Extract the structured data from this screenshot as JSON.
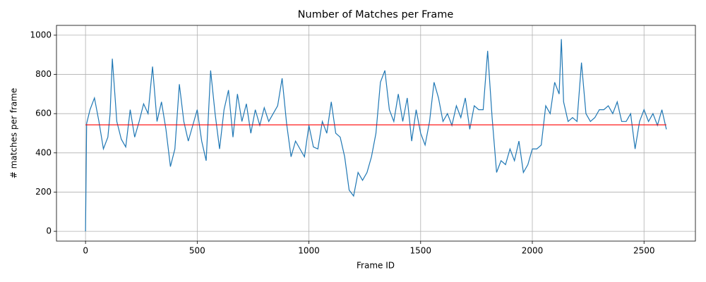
{
  "chart_data": {
    "type": "line",
    "title": "Number of Matches per Frame",
    "x_label": "Frame ID",
    "y_label": "# matches per frame",
    "x": [
      0,
      5,
      20,
      40,
      60,
      80,
      100,
      110,
      120,
      140,
      160,
      180,
      200,
      220,
      240,
      260,
      280,
      300,
      320,
      340,
      360,
      380,
      400,
      420,
      440,
      460,
      480,
      500,
      520,
      540,
      560,
      580,
      600,
      620,
      640,
      660,
      680,
      700,
      720,
      740,
      760,
      780,
      800,
      820,
      840,
      860,
      880,
      900,
      920,
      940,
      960,
      980,
      1000,
      1020,
      1040,
      1060,
      1080,
      1100,
      1120,
      1140,
      1160,
      1180,
      1200,
      1220,
      1240,
      1260,
      1280,
      1300,
      1320,
      1340,
      1360,
      1380,
      1400,
      1420,
      1440,
      1460,
      1480,
      1500,
      1520,
      1540,
      1560,
      1580,
      1600,
      1620,
      1640,
      1660,
      1680,
      1700,
      1720,
      1740,
      1760,
      1780,
      1800,
      1820,
      1840,
      1860,
      1880,
      1900,
      1920,
      1940,
      1960,
      1980,
      2000,
      2020,
      2040,
      2060,
      2080,
      2100,
      2120,
      2130,
      2140,
      2160,
      2180,
      2200,
      2220,
      2240,
      2260,
      2280,
      2300,
      2320,
      2340,
      2360,
      2380,
      2400,
      2420,
      2440,
      2460,
      2480,
      2500,
      2520,
      2540,
      2560,
      2580,
      2600
    ],
    "series": [
      {
        "color": "#1f77b4",
        "values": [
          0,
          550,
          620,
          680,
          560,
          420,
          480,
          600,
          880,
          560,
          470,
          430,
          620,
          480,
          560,
          650,
          600,
          840,
          560,
          660,
          520,
          330,
          420,
          750,
          560,
          460,
          540,
          620,
          460,
          360,
          820,
          600,
          420,
          620,
          720,
          480,
          700,
          560,
          650,
          500,
          620,
          540,
          630,
          560,
          600,
          640,
          780,
          550,
          380,
          460,
          420,
          380,
          540,
          430,
          420,
          560,
          500,
          660,
          500,
          480,
          380,
          210,
          180,
          300,
          260,
          300,
          380,
          500,
          760,
          820,
          620,
          560,
          700,
          560,
          680,
          460,
          620,
          500,
          440,
          560,
          760,
          680,
          560,
          600,
          540,
          640,
          580,
          680,
          520,
          640,
          620,
          620,
          920,
          580,
          300,
          360,
          340,
          420,
          360,
          460,
          300,
          340,
          420,
          420,
          440,
          640,
          600,
          760,
          700,
          980,
          660,
          560,
          580,
          560,
          860,
          600,
          560,
          580,
          620,
          620,
          640,
          600,
          660,
          560,
          560,
          600,
          420,
          560,
          620,
          560,
          600,
          540,
          620,
          520
        ]
      },
      {
        "color": "#ff0000",
        "x": [
          0,
          2600
        ],
        "values": [
          543,
          543
        ]
      }
    ],
    "xlim": [
      -130,
      2730
    ],
    "ylim": [
      -50,
      1050
    ],
    "xticks": [
      0,
      500,
      1000,
      1500,
      2000,
      2500
    ],
    "yticks": [
      0,
      200,
      400,
      600,
      800,
      1000
    ],
    "grid": true
  }
}
